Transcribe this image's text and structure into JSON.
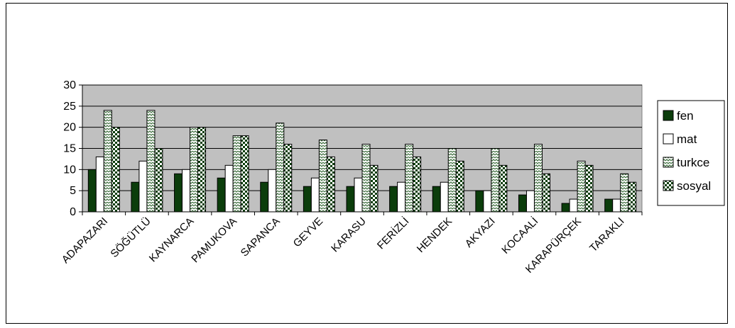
{
  "chart_data": {
    "type": "bar",
    "title": "",
    "xlabel": "",
    "ylabel": "",
    "ylim": [
      0,
      30
    ],
    "yticks": [
      0,
      5,
      10,
      15,
      20,
      25,
      30
    ],
    "grid": true,
    "plot_background": "#c0c0c0",
    "legend_position": "right",
    "categories": [
      "ADAPAZARI",
      "SÖĞÜTLÜ",
      "KAYNARCA",
      "PAMUKOVA",
      "SAPANCA",
      "GEYVE",
      "KARASU",
      "FERİZLİ",
      "HENDEK",
      "AKYAZI",
      "KOCAALİ",
      "KARAPÜRÇEK",
      "TARAKLI"
    ],
    "series": [
      {
        "name": "fen",
        "color": "#0b3d0b",
        "pattern": "solid",
        "values": [
          10,
          7,
          9,
          8,
          7,
          6,
          6,
          6,
          6,
          5,
          4,
          2,
          3
        ]
      },
      {
        "name": "mat",
        "color": "#ffffff",
        "pattern": "none",
        "values": [
          13,
          12,
          10,
          11,
          10,
          8,
          8,
          7,
          7,
          5,
          5,
          3,
          3
        ]
      },
      {
        "name": "turkce",
        "color": "#4a7a4a",
        "pattern": "zigzag",
        "values": [
          24,
          24,
          20,
          18,
          21,
          17,
          16,
          16,
          15,
          15,
          16,
          12,
          9
        ]
      },
      {
        "name": "sosyal",
        "color": "#0b3d0b",
        "pattern": "checker",
        "values": [
          20,
          15,
          20,
          18,
          16,
          13,
          11,
          13,
          12,
          11,
          9,
          11,
          7
        ]
      }
    ]
  }
}
